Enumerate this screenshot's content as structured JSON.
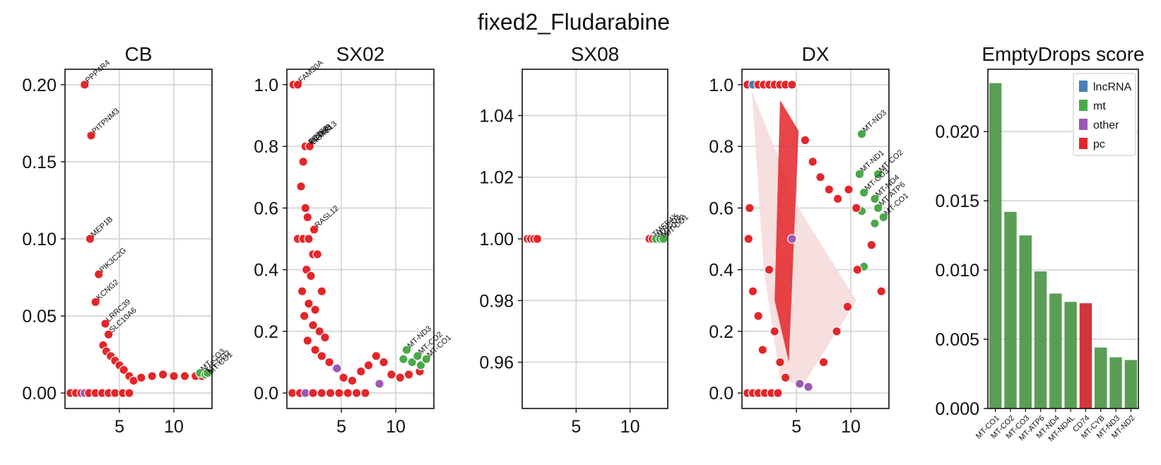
{
  "suptitle": "fixed2_Fludarabine",
  "colors": {
    "lncRNA": "#4a7eb4",
    "mt": "#4aa84a",
    "other": "#9b59b6",
    "pc": "#e3262a",
    "bar_mt": "#5a9e55",
    "bar_pc": "#d2353a",
    "grid": "#cfcfcf"
  },
  "chart_data": [
    {
      "type": "scatter",
      "title": "CB",
      "xlabel": "",
      "ylabel": "",
      "xlim": [
        0,
        13.5
      ],
      "ylim": [
        -0.01,
        0.21
      ],
      "xticks": [
        5,
        10
      ],
      "yticks": [
        0.0,
        0.05,
        0.1,
        0.15,
        0.2
      ],
      "ytick_labels": [
        "0.00",
        "0.05",
        "0.10",
        "0.15",
        "0.20"
      ],
      "grid": true,
      "points": [
        {
          "x": 1.8,
          "y": 0.2,
          "cat": "pc"
        },
        {
          "x": 2.4,
          "y": 0.167,
          "cat": "pc"
        },
        {
          "x": 2.3,
          "y": 0.1,
          "cat": "pc"
        },
        {
          "x": 3.1,
          "y": 0.077,
          "cat": "pc"
        },
        {
          "x": 2.8,
          "y": 0.059,
          "cat": "pc"
        },
        {
          "x": 3.7,
          "y": 0.045,
          "cat": "pc"
        },
        {
          "x": 4.0,
          "y": 0.038,
          "cat": "pc"
        },
        {
          "x": 3.5,
          "y": 0.031,
          "cat": "pc"
        },
        {
          "x": 3.8,
          "y": 0.027,
          "cat": "pc"
        },
        {
          "x": 4.2,
          "y": 0.024,
          "cat": "pc"
        },
        {
          "x": 4.6,
          "y": 0.021,
          "cat": "pc"
        },
        {
          "x": 5.0,
          "y": 0.018,
          "cat": "pc"
        },
        {
          "x": 5.4,
          "y": 0.015,
          "cat": "pc"
        },
        {
          "x": 5.9,
          "y": 0.011,
          "cat": "pc"
        },
        {
          "x": 6.3,
          "y": 0.008,
          "cat": "pc"
        },
        {
          "x": 7.0,
          "y": 0.01,
          "cat": "pc"
        },
        {
          "x": 8.0,
          "y": 0.011,
          "cat": "pc"
        },
        {
          "x": 9.0,
          "y": 0.012,
          "cat": "pc"
        },
        {
          "x": 10.0,
          "y": 0.011,
          "cat": "pc"
        },
        {
          "x": 11.0,
          "y": 0.011,
          "cat": "pc"
        },
        {
          "x": 12.0,
          "y": 0.011,
          "cat": "pc"
        },
        {
          "x": 12.6,
          "y": 0.011,
          "cat": "pc"
        },
        {
          "x": 12.4,
          "y": 0.013,
          "cat": "mt"
        },
        {
          "x": 12.9,
          "y": 0.012,
          "cat": "mt"
        },
        {
          "x": 13.1,
          "y": 0.013,
          "cat": "mt"
        },
        {
          "x": 0.5,
          "y": 0.0,
          "cat": "pc"
        },
        {
          "x": 1.0,
          "y": 0.0,
          "cat": "pc"
        },
        {
          "x": 1.5,
          "y": 0.0,
          "cat": "pc"
        },
        {
          "x": 1.8,
          "y": 0.0,
          "cat": "other"
        },
        {
          "x": 2.2,
          "y": 0.0,
          "cat": "pc"
        },
        {
          "x": 2.8,
          "y": 0.0,
          "cat": "pc"
        },
        {
          "x": 3.4,
          "y": 0.0,
          "cat": "pc"
        },
        {
          "x": 4.0,
          "y": 0.0,
          "cat": "pc"
        },
        {
          "x": 4.6,
          "y": 0.0,
          "cat": "pc"
        },
        {
          "x": 5.3,
          "y": 0.0,
          "cat": "pc"
        },
        {
          "x": 5.9,
          "y": 0.0,
          "cat": "pc"
        }
      ],
      "annotations": [
        {
          "label": "PPP4R4",
          "x": 1.8,
          "y": 0.2
        },
        {
          "label": "PITPNM3",
          "x": 2.4,
          "y": 0.167
        },
        {
          "label": "MEP1B",
          "x": 2.3,
          "y": 0.1
        },
        {
          "label": "PIK3C2G",
          "x": 3.1,
          "y": 0.077
        },
        {
          "label": "KCNG2",
          "x": 2.8,
          "y": 0.059
        },
        {
          "label": "LRRC39",
          "x": 3.7,
          "y": 0.045
        },
        {
          "label": "SLC10A6",
          "x": 4.0,
          "y": 0.038
        },
        {
          "label": "MT-CO3",
          "x": 12.4,
          "y": 0.013
        },
        {
          "label": "MT-CO2",
          "x": 12.9,
          "y": 0.012
        },
        {
          "label": "MT-CO1",
          "x": 13.1,
          "y": 0.011
        }
      ]
    },
    {
      "type": "scatter",
      "title": "SX02",
      "xlabel": "",
      "ylabel": "",
      "xlim": [
        0,
        13.5
      ],
      "ylim": [
        -0.05,
        1.05
      ],
      "xticks": [
        5,
        10
      ],
      "yticks": [
        0.0,
        0.2,
        0.4,
        0.6,
        0.8,
        1.0
      ],
      "ytick_labels": [
        "0.0",
        "0.2",
        "0.4",
        "0.6",
        "0.8",
        "1.0"
      ],
      "grid": true,
      "points": [
        {
          "x": 0.6,
          "y": 1.0,
          "cat": "pc"
        },
        {
          "x": 1.0,
          "y": 1.0,
          "cat": "pc"
        },
        {
          "x": 1.7,
          "y": 0.8,
          "cat": "pc"
        },
        {
          "x": 2.1,
          "y": 0.8,
          "cat": "pc"
        },
        {
          "x": 1.5,
          "y": 0.75,
          "cat": "pc"
        },
        {
          "x": 1.3,
          "y": 0.67,
          "cat": "pc"
        },
        {
          "x": 1.7,
          "y": 0.6,
          "cat": "pc"
        },
        {
          "x": 1.9,
          "y": 0.57,
          "cat": "pc"
        },
        {
          "x": 2.5,
          "y": 0.53,
          "cat": "pc"
        },
        {
          "x": 1.0,
          "y": 0.5,
          "cat": "pc"
        },
        {
          "x": 1.5,
          "y": 0.5,
          "cat": "pc"
        },
        {
          "x": 2.0,
          "y": 0.5,
          "cat": "pc"
        },
        {
          "x": 2.4,
          "y": 0.45,
          "cat": "pc"
        },
        {
          "x": 2.8,
          "y": 0.45,
          "cat": "pc"
        },
        {
          "x": 1.8,
          "y": 0.4,
          "cat": "pc"
        },
        {
          "x": 2.2,
          "y": 0.38,
          "cat": "pc"
        },
        {
          "x": 3.2,
          "y": 0.33,
          "cat": "pc"
        },
        {
          "x": 1.4,
          "y": 0.33,
          "cat": "pc"
        },
        {
          "x": 2.0,
          "y": 0.29,
          "cat": "pc"
        },
        {
          "x": 2.6,
          "y": 0.27,
          "cat": "pc"
        },
        {
          "x": 1.6,
          "y": 0.25,
          "cat": "pc"
        },
        {
          "x": 2.4,
          "y": 0.22,
          "cat": "pc"
        },
        {
          "x": 3.0,
          "y": 0.2,
          "cat": "pc"
        },
        {
          "x": 3.5,
          "y": 0.18,
          "cat": "pc"
        },
        {
          "x": 1.9,
          "y": 0.17,
          "cat": "pc"
        },
        {
          "x": 2.6,
          "y": 0.14,
          "cat": "pc"
        },
        {
          "x": 3.2,
          "y": 0.12,
          "cat": "pc"
        },
        {
          "x": 3.9,
          "y": 0.1,
          "cat": "pc"
        },
        {
          "x": 4.5,
          "y": 0.08,
          "cat": "pc"
        },
        {
          "x": 5.2,
          "y": 0.05,
          "cat": "pc"
        },
        {
          "x": 6.0,
          "y": 0.04,
          "cat": "pc"
        },
        {
          "x": 6.8,
          "y": 0.07,
          "cat": "pc"
        },
        {
          "x": 7.5,
          "y": 0.09,
          "cat": "pc"
        },
        {
          "x": 8.2,
          "y": 0.12,
          "cat": "pc"
        },
        {
          "x": 8.9,
          "y": 0.1,
          "cat": "pc"
        },
        {
          "x": 9.6,
          "y": 0.06,
          "cat": "pc"
        },
        {
          "x": 10.4,
          "y": 0.05,
          "cat": "pc"
        },
        {
          "x": 11.2,
          "y": 0.06,
          "cat": "pc"
        },
        {
          "x": 12.2,
          "y": 0.07,
          "cat": "pc"
        },
        {
          "x": 4.6,
          "y": 0.08,
          "cat": "other"
        },
        {
          "x": 8.5,
          "y": 0.03,
          "cat": "other"
        },
        {
          "x": 11.0,
          "y": 0.14,
          "cat": "mt"
        },
        {
          "x": 10.7,
          "y": 0.11,
          "cat": "mt"
        },
        {
          "x": 11.5,
          "y": 0.1,
          "cat": "mt"
        },
        {
          "x": 12.0,
          "y": 0.12,
          "cat": "mt"
        },
        {
          "x": 12.3,
          "y": 0.09,
          "cat": "mt"
        },
        {
          "x": 12.8,
          "y": 0.11,
          "cat": "mt"
        },
        {
          "x": 0.5,
          "y": 0.0,
          "cat": "pc"
        },
        {
          "x": 1.2,
          "y": 0.0,
          "cat": "pc"
        },
        {
          "x": 1.7,
          "y": 0.0,
          "cat": "other"
        },
        {
          "x": 2.4,
          "y": 0.0,
          "cat": "pc"
        },
        {
          "x": 3.2,
          "y": 0.0,
          "cat": "pc"
        },
        {
          "x": 4.0,
          "y": 0.0,
          "cat": "pc"
        },
        {
          "x": 4.8,
          "y": 0.0,
          "cat": "pc"
        },
        {
          "x": 5.6,
          "y": 0.0,
          "cat": "pc"
        },
        {
          "x": 6.4,
          "y": 0.0,
          "cat": "pc"
        },
        {
          "x": 7.2,
          "y": 0.0,
          "cat": "pc"
        }
      ],
      "annotations": [
        {
          "label": "FAM30A",
          "x": 1.0,
          "y": 1.0
        },
        {
          "label": "FEZF2",
          "x": 1.9,
          "y": 0.8
        },
        {
          "label": "PCDH8",
          "x": 2.0,
          "y": 0.8
        },
        {
          "label": "GPR83",
          "x": 2.1,
          "y": 0.8
        },
        {
          "label": "HOXB13",
          "x": 2.2,
          "y": 0.8
        },
        {
          "label": "RASL12",
          "x": 2.5,
          "y": 0.53
        },
        {
          "label": "MT-ND3",
          "x": 11.0,
          "y": 0.14
        },
        {
          "label": "MT-CO2",
          "x": 12.0,
          "y": 0.12
        },
        {
          "label": "MT-CO1",
          "x": 12.8,
          "y": 0.11
        }
      ]
    },
    {
      "type": "scatter",
      "title": "SX08",
      "xlabel": "",
      "ylabel": "",
      "xlim": [
        0,
        13.5
      ],
      "ylim": [
        0.945,
        1.055
      ],
      "xticks": [
        5,
        10
      ],
      "yticks": [
        0.96,
        0.98,
        1.0,
        1.02,
        1.04
      ],
      "ytick_labels": [
        "0.96",
        "0.98",
        "1.00",
        "1.02",
        "1.04"
      ],
      "grid": true,
      "points": [
        {
          "x": 0.5,
          "y": 1.0,
          "cat": "pc"
        },
        {
          "x": 0.8,
          "y": 1.0,
          "cat": "pc"
        },
        {
          "x": 1.1,
          "y": 1.0,
          "cat": "pc"
        },
        {
          "x": 1.4,
          "y": 1.0,
          "cat": "pc"
        },
        {
          "x": 11.8,
          "y": 1.0,
          "cat": "pc"
        },
        {
          "x": 12.1,
          "y": 1.0,
          "cat": "pc"
        },
        {
          "x": 12.4,
          "y": 1.0,
          "cat": "mt"
        },
        {
          "x": 12.8,
          "y": 1.0,
          "cat": "mt"
        },
        {
          "x": 13.1,
          "y": 1.0,
          "cat": "mt"
        }
      ],
      "annotations": [
        {
          "label": "TMSB4X",
          "x": 12.0,
          "y": 1.0
        },
        {
          "label": "MT-CO3",
          "x": 12.4,
          "y": 1.0
        },
        {
          "label": "MT-CO2",
          "x": 12.8,
          "y": 1.0
        },
        {
          "label": "MT-CO1",
          "x": 13.1,
          "y": 1.0
        }
      ]
    },
    {
      "type": "scatter",
      "title": "DX",
      "xlabel": "",
      "ylabel": "",
      "xlim": [
        0,
        13.5
      ],
      "ylim": [
        -0.05,
        1.05
      ],
      "xticks": [
        5,
        10
      ],
      "yticks": [
        0.0,
        0.2,
        0.4,
        0.6,
        0.8,
        1.0
      ],
      "ytick_labels": [
        "0.0",
        "0.2",
        "0.4",
        "0.6",
        "0.8",
        "1.0"
      ],
      "grid": true,
      "points": [
        {
          "x": 0.5,
          "y": 1.0,
          "cat": "pc"
        },
        {
          "x": 1.0,
          "y": 1.0,
          "cat": "lncRNA"
        },
        {
          "x": 1.5,
          "y": 1.0,
          "cat": "pc"
        },
        {
          "x": 2.0,
          "y": 1.0,
          "cat": "pc"
        },
        {
          "x": 2.5,
          "y": 1.0,
          "cat": "pc"
        },
        {
          "x": 3.0,
          "y": 1.0,
          "cat": "pc"
        },
        {
          "x": 3.5,
          "y": 1.0,
          "cat": "pc"
        },
        {
          "x": 4.0,
          "y": 1.0,
          "cat": "pc"
        },
        {
          "x": 4.6,
          "y": 1.0,
          "cat": "pc"
        },
        {
          "x": 4.6,
          "y": 0.5,
          "cat": "other"
        },
        {
          "x": 5.3,
          "y": 0.03,
          "cat": "other"
        },
        {
          "x": 6.1,
          "y": 0.02,
          "cat": "other"
        },
        {
          "x": 11.0,
          "y": 0.84,
          "cat": "mt"
        },
        {
          "x": 10.8,
          "y": 0.71,
          "cat": "mt"
        },
        {
          "x": 12.5,
          "y": 0.71,
          "cat": "mt"
        },
        {
          "x": 11.2,
          "y": 0.65,
          "cat": "mt"
        },
        {
          "x": 12.2,
          "y": 0.63,
          "cat": "mt"
        },
        {
          "x": 12.5,
          "y": 0.6,
          "cat": "mt"
        },
        {
          "x": 11.0,
          "y": 0.59,
          "cat": "mt"
        },
        {
          "x": 13.0,
          "y": 0.57,
          "cat": "mt"
        },
        {
          "x": 12.2,
          "y": 0.55,
          "cat": "mt"
        },
        {
          "x": 11.2,
          "y": 0.41,
          "cat": "mt"
        },
        {
          "x": 12.8,
          "y": 0.33,
          "cat": "pc"
        },
        {
          "x": 9.8,
          "y": 0.66,
          "cat": "pc"
        },
        {
          "x": 10.5,
          "y": 0.6,
          "cat": "pc"
        },
        {
          "x": 8.8,
          "y": 0.63,
          "cat": "pc"
        },
        {
          "x": 8.0,
          "y": 0.66,
          "cat": "pc"
        },
        {
          "x": 7.2,
          "y": 0.7,
          "cat": "pc"
        },
        {
          "x": 6.5,
          "y": 0.75,
          "cat": "pc"
        },
        {
          "x": 5.8,
          "y": 0.82,
          "cat": "pc"
        },
        {
          "x": 0.7,
          "y": 0.6,
          "cat": "pc"
        },
        {
          "x": 0.6,
          "y": 0.5,
          "cat": "pc"
        },
        {
          "x": 1.0,
          "y": 0.33,
          "cat": "pc"
        },
        {
          "x": 1.5,
          "y": 0.25,
          "cat": "pc"
        },
        {
          "x": 1.9,
          "y": 0.14,
          "cat": "pc"
        },
        {
          "x": 2.5,
          "y": 0.4,
          "cat": "pc"
        },
        {
          "x": 3.0,
          "y": 0.2,
          "cat": "pc"
        },
        {
          "x": 3.5,
          "y": 0.1,
          "cat": "pc"
        },
        {
          "x": 4.0,
          "y": 0.05,
          "cat": "pc"
        },
        {
          "x": 7.5,
          "y": 0.1,
          "cat": "pc"
        },
        {
          "x": 8.7,
          "y": 0.2,
          "cat": "pc"
        },
        {
          "x": 9.7,
          "y": 0.28,
          "cat": "pc"
        },
        {
          "x": 10.6,
          "y": 0.4,
          "cat": "pc"
        },
        {
          "x": 11.9,
          "y": 0.48,
          "cat": "pc"
        },
        {
          "x": 0.5,
          "y": 0.0,
          "cat": "pc"
        },
        {
          "x": 1.0,
          "y": 0.0,
          "cat": "pc"
        },
        {
          "x": 1.5,
          "y": 0.0,
          "cat": "pc"
        },
        {
          "x": 2.1,
          "y": 0.0,
          "cat": "pc"
        },
        {
          "x": 2.7,
          "y": 0.0,
          "cat": "pc"
        },
        {
          "x": 3.3,
          "y": 0.0,
          "cat": "pc"
        }
      ],
      "annotations": [
        {
          "label": "MT-ND3",
          "x": 11.0,
          "y": 0.84
        },
        {
          "label": "MT-ND1",
          "x": 10.8,
          "y": 0.71
        },
        {
          "label": "MT-CO2",
          "x": 12.5,
          "y": 0.71
        },
        {
          "label": "MT-CO3",
          "x": 11.2,
          "y": 0.65
        },
        {
          "label": "MT-ND4",
          "x": 12.2,
          "y": 0.63
        },
        {
          "label": "MT-ATP6",
          "x": 12.5,
          "y": 0.6
        },
        {
          "label": "MT-CO1",
          "x": 13.0,
          "y": 0.57
        }
      ]
    },
    {
      "type": "bar",
      "title": "EmptyDrops score",
      "xlabel": "",
      "ylabel": "",
      "ylim": [
        0,
        0.0245
      ],
      "yticks": [
        0.0,
        0.005,
        0.01,
        0.015,
        0.02
      ],
      "ytick_labels": [
        "0.000",
        "0.005",
        "0.010",
        "0.015",
        "0.020"
      ],
      "grid": true,
      "legend_position": "top-right",
      "legend": [
        "lncRNA",
        "mt",
        "other",
        "pc"
      ],
      "categories": [
        "MT-CO1",
        "MT-CO2",
        "MT-CO3",
        "MT-ATP6",
        "MT-ND4",
        "MT-ND4L",
        "CD74",
        "MT-CYB",
        "MT-ND3",
        "MT-ND2"
      ],
      "values": [
        0.0235,
        0.0142,
        0.0125,
        0.0099,
        0.0083,
        0.0077,
        0.0076,
        0.0044,
        0.0037,
        0.0035
      ],
      "bar_categories": [
        "mt",
        "mt",
        "mt",
        "mt",
        "mt",
        "mt",
        "pc",
        "mt",
        "mt",
        "mt"
      ]
    }
  ]
}
